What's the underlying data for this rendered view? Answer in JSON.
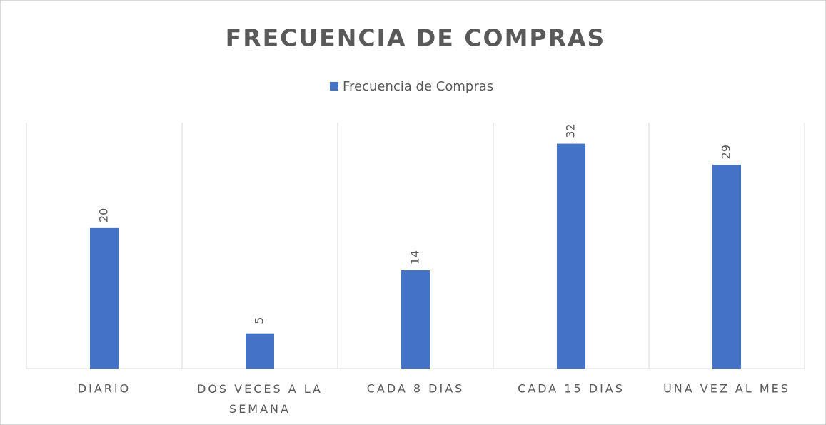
{
  "chart_data": {
    "type": "bar",
    "title": "FRECUENCIA DE COMPRAS",
    "categories": [
      "DIARIO",
      "DOS VECES A LA SEMANA",
      "CADA 8 DIAS",
      "CADA 15 DIAS",
      "UNA VEZ AL MES"
    ],
    "series": [
      {
        "name": "Frecuencia de Compras",
        "color": "#4472c4",
        "values": [
          20,
          5,
          14,
          32,
          29
        ]
      }
    ],
    "ylim": [
      0,
      35
    ],
    "grid": true,
    "legend": "top"
  }
}
